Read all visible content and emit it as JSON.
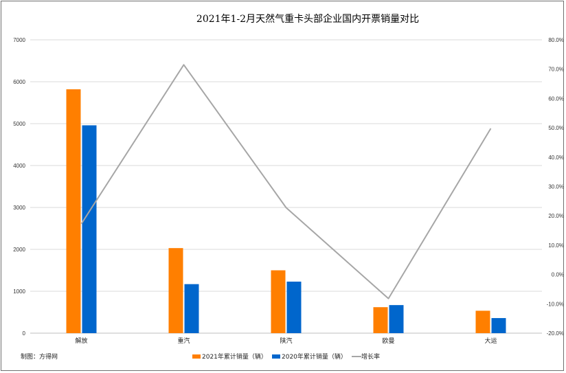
{
  "chart_data": {
    "type": "bar",
    "title": "2021年1-2月天然气重卡头部企业国内开票销量对比",
    "categories": [
      "解放",
      "重汽",
      "陕汽",
      "欧曼",
      "大运"
    ],
    "series": [
      {
        "name": "2021年累计销量（辆）",
        "type": "bar",
        "axis": "left",
        "color": "#ff7f00",
        "values": [
          5820,
          2030,
          1500,
          620,
          535
        ]
      },
      {
        "name": "2020年累计销量（辆）",
        "type": "bar",
        "axis": "left",
        "color": "#0066cc",
        "values": [
          4960,
          1170,
          1230,
          670,
          360
        ]
      },
      {
        "name": "增长率",
        "type": "line",
        "axis": "right",
        "color": "#a6a6a6",
        "values": [
          17.3,
          71.5,
          22.8,
          -8.2,
          49.8
        ]
      }
    ],
    "y_left": {
      "ylim": [
        0,
        7000
      ],
      "ticks": [
        "0",
        "1000",
        "2000",
        "3000",
        "4000",
        "5000",
        "6000",
        "7000"
      ]
    },
    "y_right": {
      "ylim": [
        -20,
        80
      ],
      "ticks": [
        "-20.0%",
        "-10.0%",
        "0.0%",
        "10.0%",
        "20.0%",
        "30.0%",
        "40.0%",
        "50.0%",
        "60.0%",
        "70.0%",
        "80.0%"
      ]
    },
    "grid": true,
    "legend_position": "bottom-center",
    "credit": "制图：方得网"
  }
}
